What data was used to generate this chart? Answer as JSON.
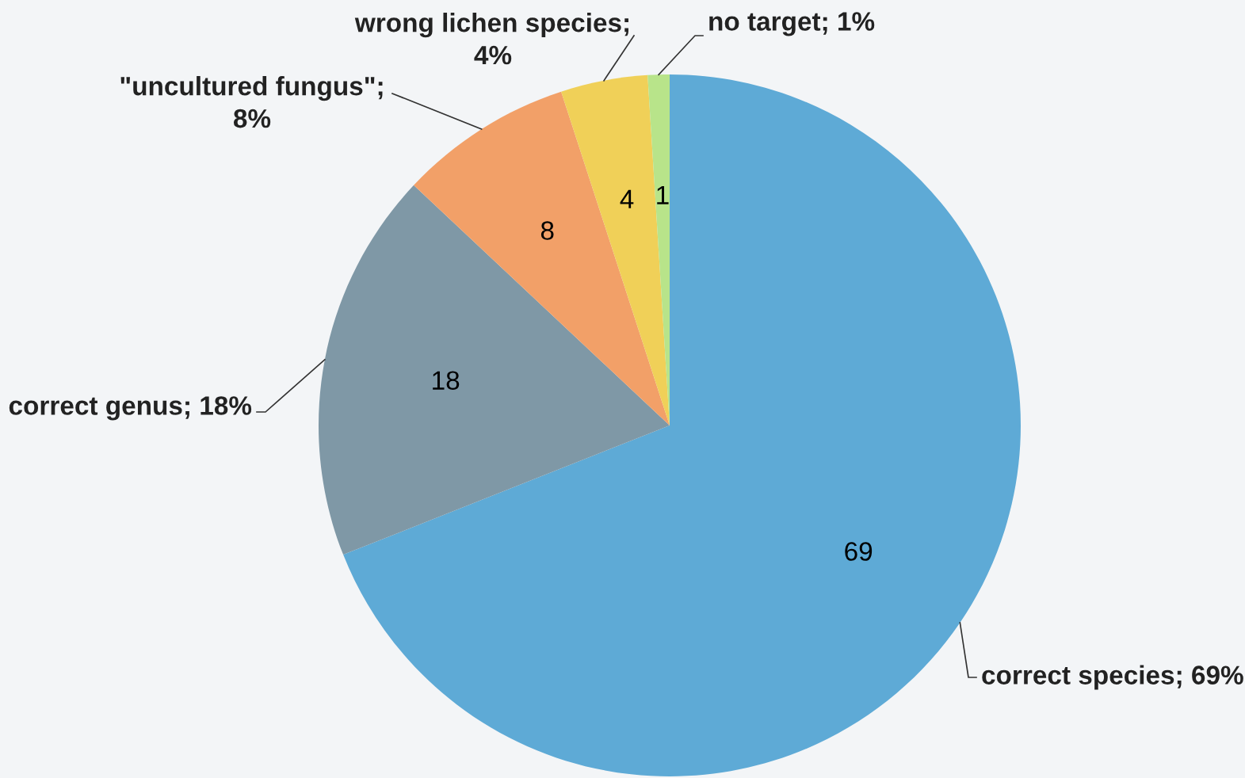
{
  "chart_data": {
    "type": "pie",
    "categories": [
      "correct species; 69%",
      "correct genus; 18%",
      "\"uncultured fungus\"; 8%",
      "wrong lichen species; 4%",
      "no target; 1%"
    ],
    "values": [
      69,
      18,
      8,
      4,
      1
    ],
    "colors": [
      "#5eaad6",
      "#7f98a6",
      "#f2a068",
      "#f0d058",
      "#b8e48a"
    ],
    "data_labels": true
  }
}
